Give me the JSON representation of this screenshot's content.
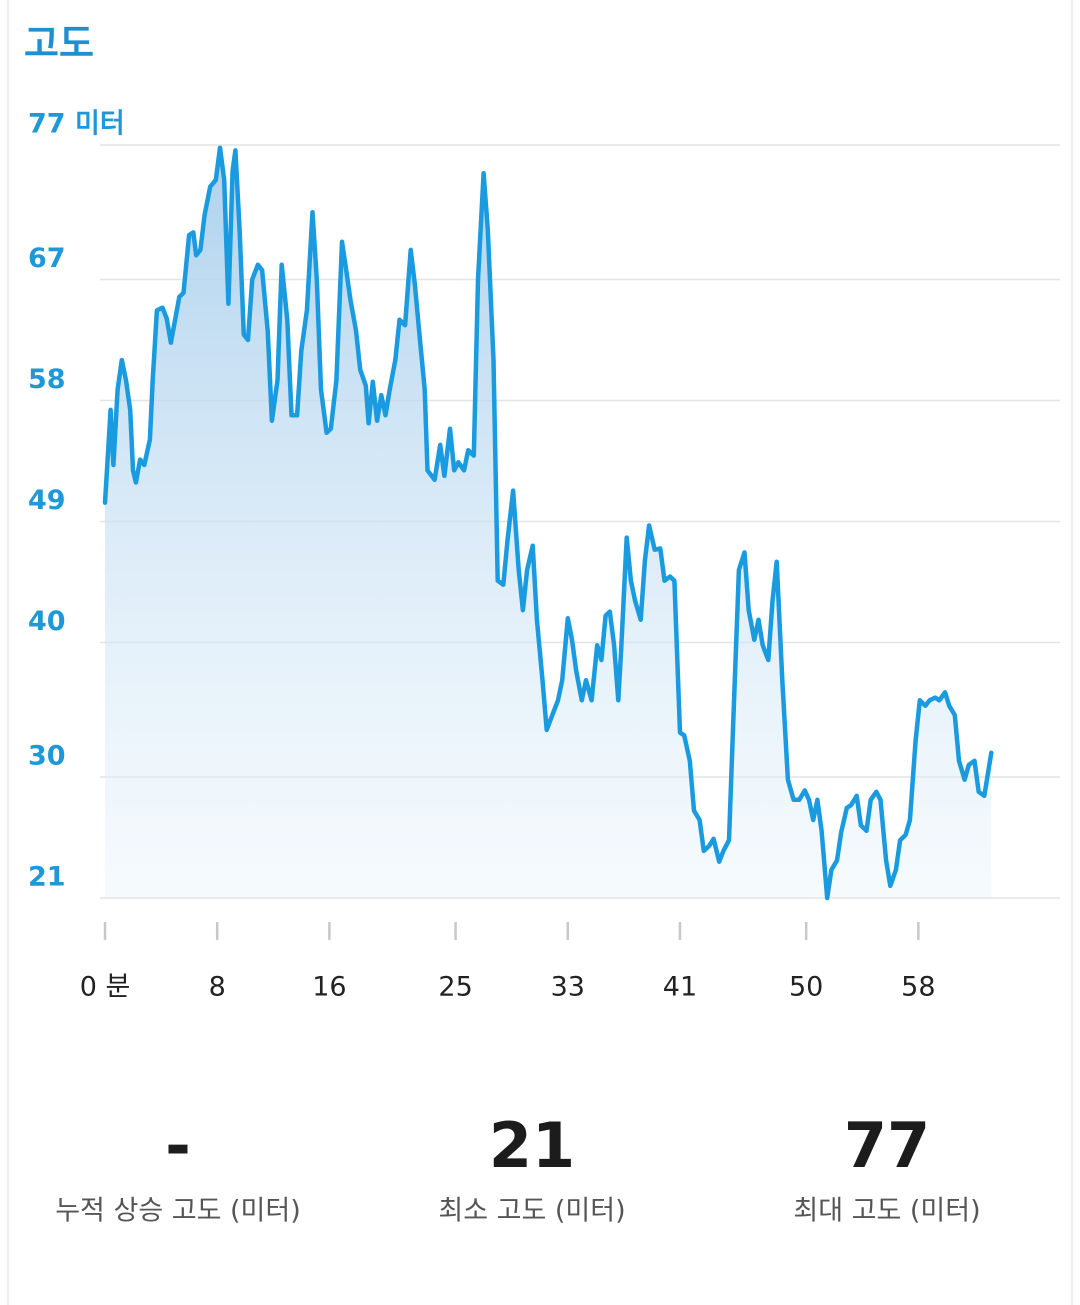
{
  "chart_data": {
    "type": "line",
    "title": "고도",
    "x": [
      0,
      0.4,
      0.6,
      0.9,
      1.2,
      1.5,
      1.8,
      2.0,
      2.2,
      2.5,
      2.8,
      3.2,
      3.4,
      3.7,
      4.1,
      4.4,
      4.7,
      5.0,
      5.3,
      5.6,
      6.0,
      6.3,
      6.5,
      6.8,
      7.1,
      7.5,
      7.9,
      8.2,
      8.5,
      8.8,
      9.1,
      9.3,
      9.6,
      9.9,
      10.2,
      10.5,
      10.9,
      11.2,
      11.6,
      11.9,
      12.3,
      12.6,
      13.0,
      13.3,
      13.7,
      14.0,
      14.4,
      14.8,
      15.1,
      15.4,
      15.8,
      16.1,
      16.5,
      16.9,
      17.2,
      17.5,
      17.9,
      18.2,
      18.6,
      18.8,
      19.1,
      19.4,
      19.7,
      20.0,
      20.3,
      20.7,
      21.0,
      21.4,
      21.8,
      22.1,
      22.4,
      22.8,
      23.0,
      23.5,
      23.9,
      24.2,
      24.6,
      24.9,
      25.2,
      25.6,
      25.9,
      26.3,
      26.6,
      27.0,
      27.3,
      27.7,
      28.0,
      28.4,
      28.7,
      29.1,
      29.5,
      29.8,
      30.1,
      30.5,
      30.8,
      31.2,
      31.5,
      31.9,
      32.3,
      32.6,
      33.0,
      33.3,
      33.6,
      34.0,
      34.3,
      34.7,
      35.1,
      35.4,
      35.7,
      36.0,
      36.3,
      36.6,
      36.8,
      37.2,
      37.5,
      37.8,
      38.2,
      38.5,
      38.8,
      39.2,
      39.6,
      39.9,
      40.3,
      40.6,
      41.0,
      41.3,
      41.7,
      42.0,
      42.4,
      42.7,
      43.1,
      43.4,
      43.8,
      44.1,
      44.5,
      44.8,
      45.2,
      45.6,
      45.9,
      46.3,
      46.6,
      46.9,
      47.3,
      47.6,
      47.9,
      48.3,
      48.7,
      49.1,
      49.5,
      49.9,
      50.2,
      50.5,
      50.8,
      51.1,
      51.5,
      51.8,
      52.2,
      52.5,
      52.9,
      53.2,
      53.6,
      53.9,
      54.3,
      54.6,
      55.0,
      55.3,
      55.7,
      56.0,
      56.4,
      56.7,
      57.1,
      57.4,
      57.8,
      58.1,
      58.5,
      58.8,
      59.2,
      59.5,
      59.9,
      60.2,
      60.6,
      60.9,
      61.3,
      61.6,
      62.0,
      62.3,
      62.7,
      63.2
    ],
    "series": [
      {
        "color": "#1a9be0",
        "values": [
          50.4,
          57.3,
          53.2,
          58.8,
          61.0,
          59.5,
          57.3,
          52.8,
          51.9,
          53.6,
          53.2,
          55.1,
          59.5,
          64.7,
          64.9,
          64.1,
          62.3,
          64.0,
          65.7,
          66.0,
          70.3,
          70.5,
          68.8,
          69.2,
          71.8,
          73.9,
          74.4,
          76.8,
          74.4,
          65.2,
          75.1,
          76.6,
          70.7,
          62.9,
          62.5,
          67.0,
          68.1,
          67.7,
          63.2,
          56.5,
          59.5,
          68.1,
          64.0,
          56.9,
          56.9,
          61.7,
          64.7,
          72.0,
          67.0,
          58.8,
          55.6,
          55.9,
          59.5,
          69.8,
          67.7,
          65.5,
          63.2,
          60.3,
          59.1,
          56.3,
          59.4,
          56.5,
          58.4,
          56.9,
          58.8,
          61.0,
          64.0,
          63.6,
          69.2,
          66.6,
          63.2,
          58.8,
          52.8,
          52.1,
          54.7,
          52.4,
          55.9,
          52.8,
          53.4,
          52.8,
          54.3,
          53.9,
          67.0,
          74.9,
          70.7,
          61.0,
          44.6,
          44.3,
          47.6,
          51.3,
          45.4,
          42.4,
          45.4,
          47.2,
          41.7,
          37.2,
          33.5,
          34.6,
          35.7,
          37.2,
          41.8,
          40.2,
          37.9,
          35.7,
          37.2,
          35.7,
          39.8,
          38.7,
          42.0,
          42.3,
          39.8,
          35.7,
          39.4,
          47.8,
          44.6,
          43.1,
          41.7,
          46.1,
          48.7,
          46.9,
          47.0,
          44.6,
          44.9,
          44.6,
          33.3,
          33.1,
          31.2,
          27.5,
          26.8,
          24.5,
          24.9,
          25.4,
          23.7,
          24.5,
          25.3,
          34.2,
          45.4,
          46.7,
          42.4,
          40.2,
          41.7,
          39.8,
          38.7,
          43.1,
          46.0,
          37.2,
          29.8,
          28.3,
          28.3,
          29.0,
          28.3,
          26.8,
          28.3,
          26.0,
          21.0,
          23.1,
          23.8,
          25.9,
          27.7,
          27.9,
          28.6,
          26.4,
          26.0,
          28.3,
          28.9,
          28.3,
          23.8,
          21.9,
          23.1,
          25.3,
          25.7,
          26.8,
          32.7,
          35.7,
          35.3,
          35.7,
          35.9,
          35.7,
          36.3,
          35.3,
          34.6,
          31.2,
          29.8,
          30.9,
          31.2,
          28.9,
          28.6,
          31.8
        ]
      }
    ],
    "xlim": [
      0,
      68.1
    ],
    "xticks": [
      {
        "value": 0,
        "label": "0 분"
      },
      8,
      16,
      25,
      33,
      41,
      50,
      58
    ],
    "ylim": [
      21,
      77
    ],
    "yticks": [
      {
        "value": 77,
        "label": "77 미터"
      },
      67,
      58,
      49,
      40,
      30,
      21
    ],
    "grid": true
  },
  "stats": [
    {
      "value": "-",
      "label": "누적 상승 고도 (미터)"
    },
    {
      "value": 21,
      "label": "최소 고도 (미터)"
    },
    {
      "value": 77,
      "label": "최대 고도 (미터)"
    }
  ]
}
